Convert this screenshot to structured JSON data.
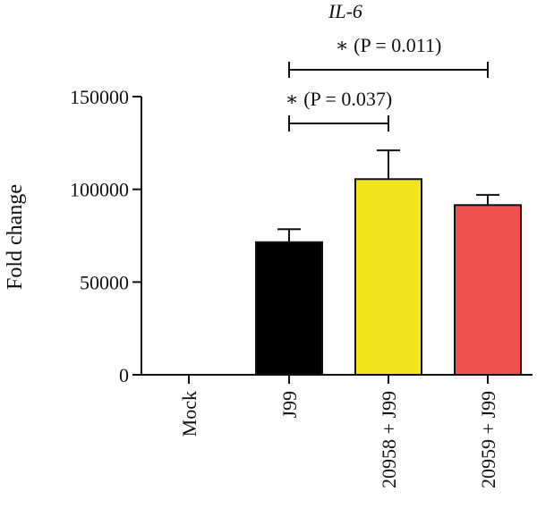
{
  "chart_data": {
    "type": "bar",
    "title": "IL-6",
    "xlabel": "",
    "ylabel": "Fold change",
    "ylim": [
      0,
      150000
    ],
    "yticks": [
      0,
      50000,
      100000,
      150000
    ],
    "ytick_labels": [
      "0",
      "50000",
      "100000",
      "150000"
    ],
    "categories": [
      "Mock",
      "J99",
      "20958 + J99",
      "20959 + J99"
    ],
    "values": [
      0,
      71500,
      105500,
      91500
    ],
    "errors": [
      0,
      7000,
      15500,
      5500
    ],
    "colors": [
      "#000000",
      "#000000",
      "#f2e51d",
      "#ef5150"
    ],
    "grid": false,
    "significance": [
      {
        "from": 1,
        "to": 2,
        "label": "∗ (P = 0.037)"
      },
      {
        "from": 1,
        "to": 3,
        "label": "∗ (P = 0.011)"
      }
    ]
  }
}
